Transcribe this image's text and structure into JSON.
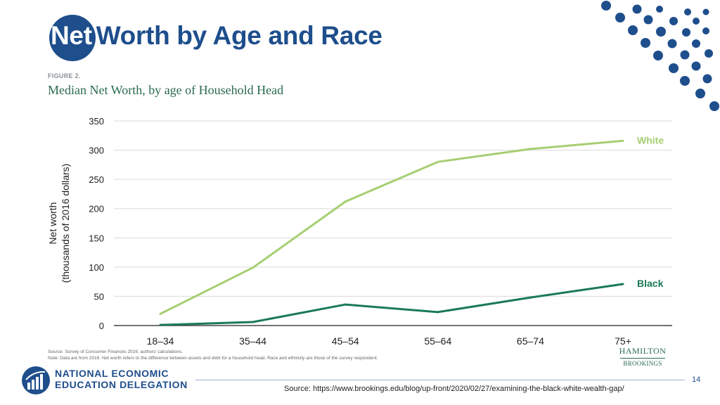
{
  "slide": {
    "title_first": "Net",
    "title_rest": " Worth by Age and Race",
    "figure_label": "FIGURE 2.",
    "figure_subtitle": "Median Net Worth, by age of Household Head",
    "notes": [
      "Source: Survey of Consumer Finances 2016; authors' calculations.",
      "Note: Data are from 2016. Net worth refers to the difference between assets and debt for a household head. Race and ethnicity are those of the survey respondent."
    ],
    "hamilton_name": "HAMILTON",
    "brookings_name": "BROOKINGS",
    "org_line1": "NATIONAL ECONOMIC",
    "org_line2": "EDUCATION DELEGATION",
    "page_number": "14",
    "source": "Source: https://www.brookings.edu/blog/up-front/2020/02/27/examining-the-black-white-wealth-gap/"
  },
  "colors": {
    "brand_blue": "#1e4e8c",
    "white_series": "#a6cf72",
    "black_series": "#1a7a55",
    "label_green": "#2a6a4e"
  },
  "chart_data": {
    "type": "line",
    "title": "Median Net Worth, by age of Household Head",
    "xlabel": "",
    "ylabel_line1": "Net worth",
    "ylabel_line2": "(thousands of 2016 dollars)",
    "categories": [
      "18–34",
      "35–44",
      "45–54",
      "55–64",
      "65–74",
      "75+"
    ],
    "ylim": [
      0,
      350
    ],
    "yticks": [
      0,
      50,
      100,
      150,
      200,
      250,
      300,
      350
    ],
    "grid": true,
    "series": [
      {
        "name": "White",
        "values": [
          20,
          99,
          212,
          280,
          302,
          316
        ],
        "color": "#a6cf72"
      },
      {
        "name": "Black",
        "values": [
          1,
          6,
          36,
          23,
          48,
          71
        ],
        "color": "#1a7a55"
      }
    ]
  }
}
